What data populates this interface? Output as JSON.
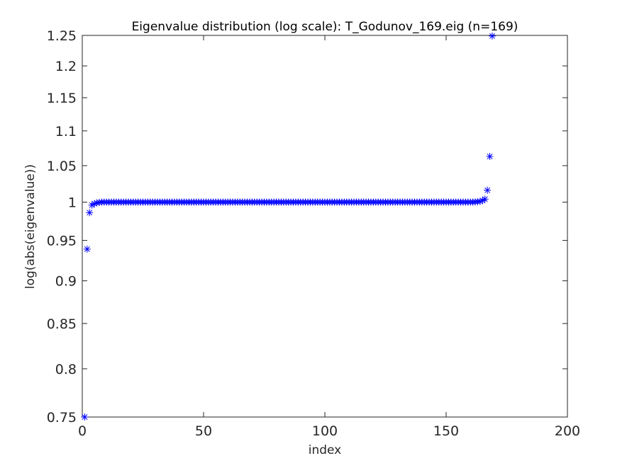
{
  "chart_data": {
    "type": "scatter",
    "title": "Eigenvalue distribution (log scale): T_Godunov_169.eig (n=169)",
    "xlabel": "index",
    "ylabel": "log(abs(eigenvalue))",
    "xlim": [
      0,
      200
    ],
    "ylim": [
      0.75,
      1.25
    ],
    "yscale": "log",
    "xticks": [
      0,
      50,
      100,
      150,
      200
    ],
    "yticks": [
      0.75,
      0.8,
      0.85,
      0.9,
      0.95,
      1,
      1.05,
      1.1,
      1.15,
      1.2,
      1.25
    ],
    "xtick_labels": [
      "0",
      "50",
      "100",
      "150",
      "200"
    ],
    "ytick_labels": [
      "0.75",
      "0.8",
      "0.85",
      "0.9",
      "0.95",
      "1",
      "1.05",
      "1.1",
      "1.15",
      "1.2",
      "1.25"
    ],
    "grid": false,
    "marker": "*",
    "marker_color": "#0000ff",
    "series": [
      {
        "x_start": 1,
        "x_step": 1,
        "values": [
          0.75,
          0.939,
          0.986,
          0.996,
          0.998,
          0.999,
          0.9995,
          1,
          1,
          1,
          1,
          1,
          1,
          1,
          1,
          1,
          1,
          1,
          1,
          1,
          1,
          1,
          1,
          1,
          1,
          1,
          1,
          1,
          1,
          1,
          1,
          1,
          1,
          1,
          1,
          1,
          1,
          1,
          1,
          1,
          1,
          1,
          1,
          1,
          1,
          1,
          1,
          1,
          1,
          1,
          1,
          1,
          1,
          1,
          1,
          1,
          1,
          1,
          1,
          1,
          1,
          1,
          1,
          1,
          1,
          1,
          1,
          1,
          1,
          1,
          1,
          1,
          1,
          1,
          1,
          1,
          1,
          1,
          1,
          1,
          1,
          1,
          1,
          1,
          1,
          1,
          1,
          1,
          1,
          1,
          1,
          1,
          1,
          1,
          1,
          1,
          1,
          1,
          1,
          1,
          1,
          1,
          1,
          1,
          1,
          1,
          1,
          1,
          1,
          1,
          1,
          1,
          1,
          1,
          1,
          1,
          1,
          1,
          1,
          1,
          1,
          1,
          1,
          1,
          1,
          1,
          1,
          1,
          1,
          1,
          1,
          1,
          1,
          1,
          1,
          1,
          1,
          1,
          1,
          1,
          1,
          1,
          1,
          1,
          1,
          1,
          1,
          1,
          1,
          1,
          1,
          1,
          1,
          1,
          1,
          1,
          1,
          1,
          1,
          1,
          1,
          1.0003,
          1.0006,
          1.001,
          1.002,
          1.004,
          1.016,
          1.063,
          1.249
        ]
      }
    ]
  }
}
